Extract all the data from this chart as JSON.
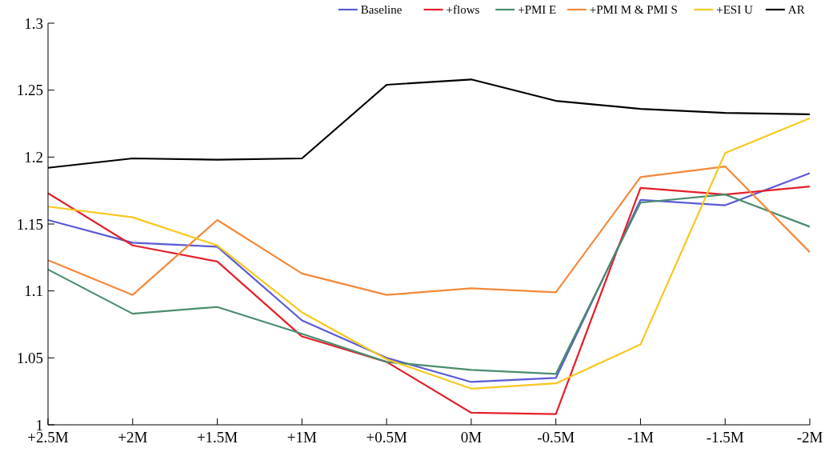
{
  "chart_data": {
    "type": "line",
    "categories": [
      "+2.5M",
      "+2M",
      "+1.5M",
      "+1M",
      "+0.5M",
      "0M",
      "-0.5M",
      "-1M",
      "-1.5M",
      "-2M"
    ],
    "series": [
      {
        "name": "Baseline",
        "color": "#5a5ad6",
        "values": [
          1.153,
          1.136,
          1.133,
          1.078,
          1.05,
          1.032,
          1.035,
          1.168,
          1.164,
          1.188
        ]
      },
      {
        "name": "+flows",
        "color": "#e3202a",
        "values": [
          1.173,
          1.134,
          1.122,
          1.066,
          1.047,
          1.009,
          1.008,
          1.177,
          1.172,
          1.178
        ]
      },
      {
        "name": "+PMI E",
        "color": "#4a8c6e",
        "values": [
          1.116,
          1.083,
          1.088,
          1.068,
          1.047,
          1.041,
          1.038,
          1.166,
          1.172,
          1.148
        ]
      },
      {
        "name": "+PMI M & PMI S",
        "color": "#f5883a",
        "values": [
          1.123,
          1.097,
          1.153,
          1.113,
          1.097,
          1.102,
          1.099,
          1.185,
          1.193,
          1.129
        ]
      },
      {
        "name": "+ESI U",
        "color": "#f7c81e",
        "values": [
          1.163,
          1.155,
          1.134,
          1.084,
          1.049,
          1.027,
          1.031,
          1.06,
          1.203,
          1.229
        ]
      },
      {
        "name": "AR",
        "color": "#000000",
        "values": [
          1.192,
          1.199,
          1.198,
          1.199,
          1.254,
          1.258,
          1.242,
          1.236,
          1.233,
          1.232
        ]
      }
    ],
    "ylim": [
      1,
      1.3
    ],
    "yticks": [
      1,
      1.05,
      1.1,
      1.15,
      1.2,
      1.25,
      1.3
    ],
    "grid": false,
    "legend": "top right",
    "marker": "none",
    "line_style": "solid"
  }
}
